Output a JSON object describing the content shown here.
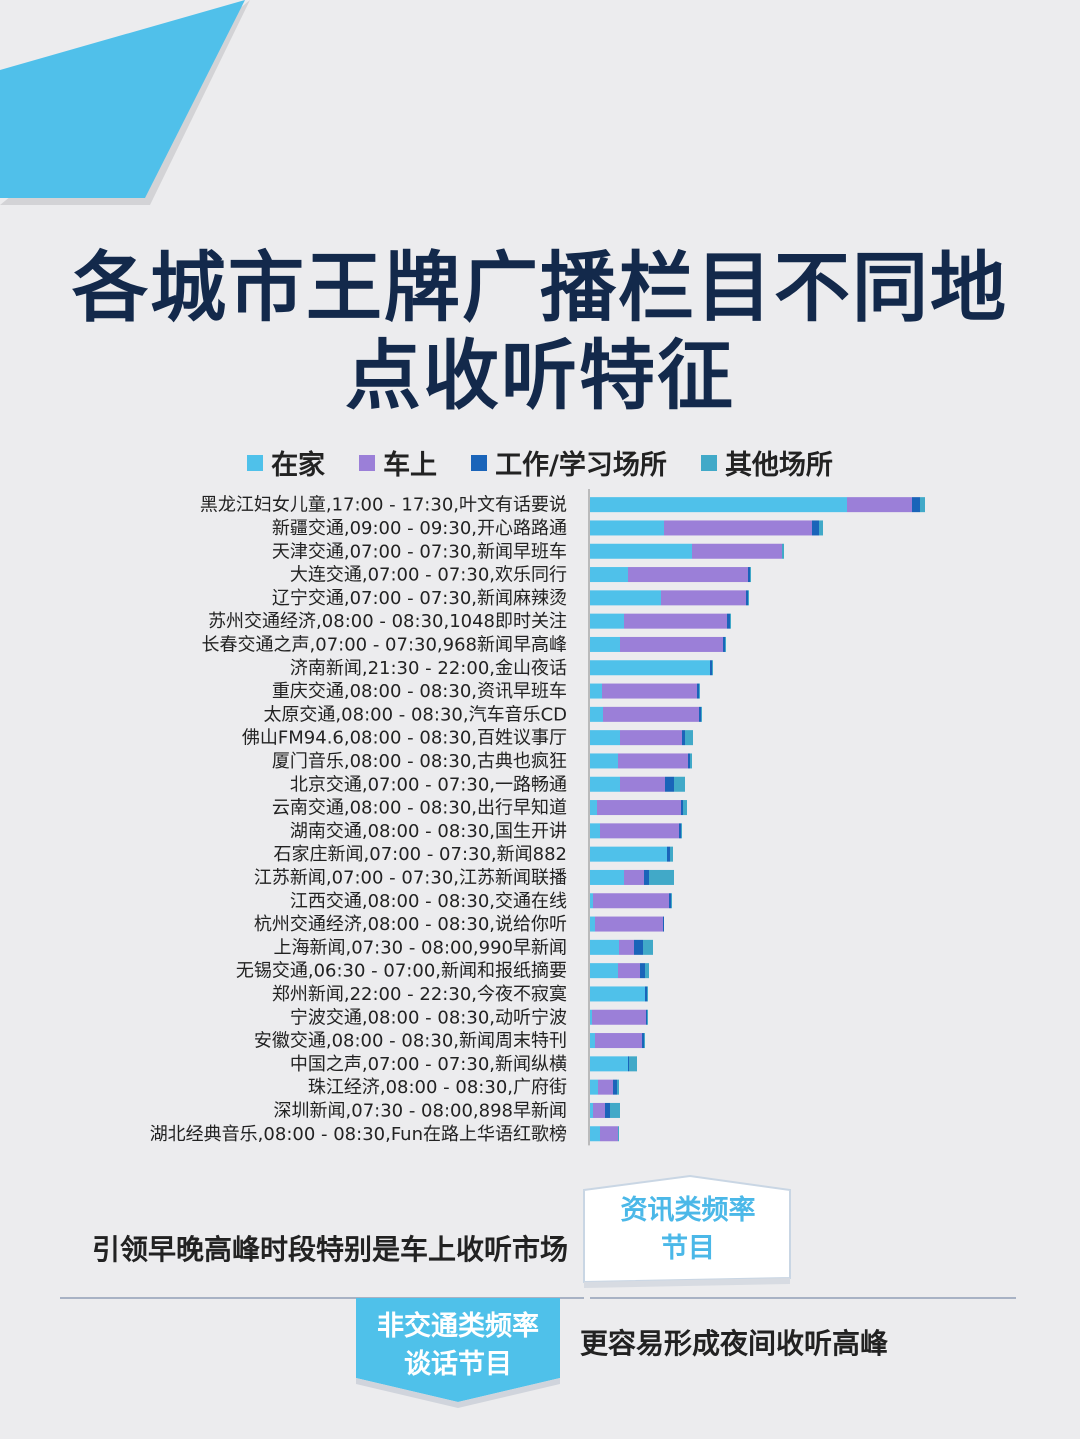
{
  "title_line1": "各城市王牌广播栏目不同地",
  "title_line2": "点收听特征",
  "colors": {
    "home": "#4fc1ea",
    "car": "#9b7fd8",
    "work": "#1a64b9",
    "other": "#41a9c8",
    "title": "#13294b",
    "accent": "#4bb8e8"
  },
  "chart_data": {
    "type": "bar",
    "orientation": "horizontal",
    "stacked": true,
    "legend": "top",
    "grid": false,
    "categories": [
      "黑龙江妇女儿童,17:00 - 17:30,叶文有话要说",
      "新疆交通,09:00 - 09:30,开心路路通",
      "天津交通,07:00 - 07:30,新闻早班车",
      "大连交通,07:00 - 07:30,欢乐同行",
      "辽宁交通,07:00 - 07:30,新闻麻辣烫",
      "苏州交通经济,08:00 - 08:30,1048即时关注",
      "长春交通之声,07:00 - 07:30,968新闻早高峰",
      "济南新闻,21:30 - 22:00,金山夜话",
      "重庆交通,08:00 - 08:30,资讯早班车",
      "太原交通,08:00 - 08:30,汽车音乐CD",
      "佛山FM94.6,08:00 - 08:30,百姓议事厅",
      "厦门音乐,08:00 - 08:30,古典也疯狂",
      "北京交通,07:00 - 07:30,一路畅通",
      "云南交通,08:00 - 08:30,出行早知道",
      "湖南交通,08:00 - 08:30,国生开讲",
      "石家庄新闻,07:00 - 07:30,新闻882",
      "江苏新闻,07:00 - 07:30,江苏新闻联播",
      "江西交通,08:00 - 08:30,交通在线",
      "杭州交通经济,08:00 - 08:30,说给你听",
      "上海新闻,07:30 - 08:00,990早新闻",
      "无锡交通,06:30 - 07:00,新闻和报纸摘要",
      "郑州新闻,22:00 - 22:30,今夜不寂寞",
      "宁波交通,08:00 - 08:30,动听宁波",
      "安徽交通,08:00 - 08:30,新闻周末特刊",
      "中国之声,07:00 - 07:30,新闻纵横",
      "珠江经济,08:00 - 08:30,广府街",
      "深圳新闻,07:30 - 08:00,898早新闻",
      "湖北经典音乐,08:00 - 08:30,Fun在路上华语红歌榜"
    ],
    "series": [
      {
        "name": "在家",
        "color": "#4fc1ea",
        "values": [
          257,
          74,
          102,
          38,
          71,
          34,
          30,
          120,
          12,
          13,
          30,
          28,
          30,
          7,
          10,
          77,
          34,
          3,
          5,
          29,
          28,
          55,
          2,
          5,
          38,
          8,
          3,
          10
        ]
      },
      {
        "name": "车上",
        "color": "#9b7fd8",
        "values": [
          65,
          148,
          90,
          120,
          85,
          103,
          103,
          0,
          95,
          96,
          62,
          70,
          45,
          84,
          79,
          0,
          20,
          76,
          68,
          15,
          22,
          0,
          54,
          47,
          0,
          15,
          12,
          18
        ]
      },
      {
        "name": "工作/学习场所",
        "color": "#1a64b9",
        "values": [
          8,
          7,
          0,
          2,
          2,
          3,
          2,
          2,
          2,
          2,
          3,
          2,
          9,
          2,
          2,
          3,
          5,
          2,
          1,
          9,
          5,
          2,
          1,
          2,
          1,
          4,
          5,
          0
        ]
      },
      {
        "name": "其他场所",
        "color": "#41a9c8",
        "values": [
          5,
          4,
          2,
          1,
          1,
          1,
          1,
          1,
          1,
          1,
          8,
          2,
          11,
          4,
          1,
          3,
          25,
          1,
          0,
          10,
          4,
          1,
          1,
          1,
          8,
          2,
          10,
          1
        ]
      }
    ]
  },
  "badge1_line1": "资讯类频率",
  "badge1_line2": "节目",
  "caption1": "引领早晚高峰时段特别是车上收听市场",
  "badge2_line1": "非交通类频率",
  "badge2_line2": "谈话节目",
  "caption2": "更容易形成夜间收听高峰"
}
